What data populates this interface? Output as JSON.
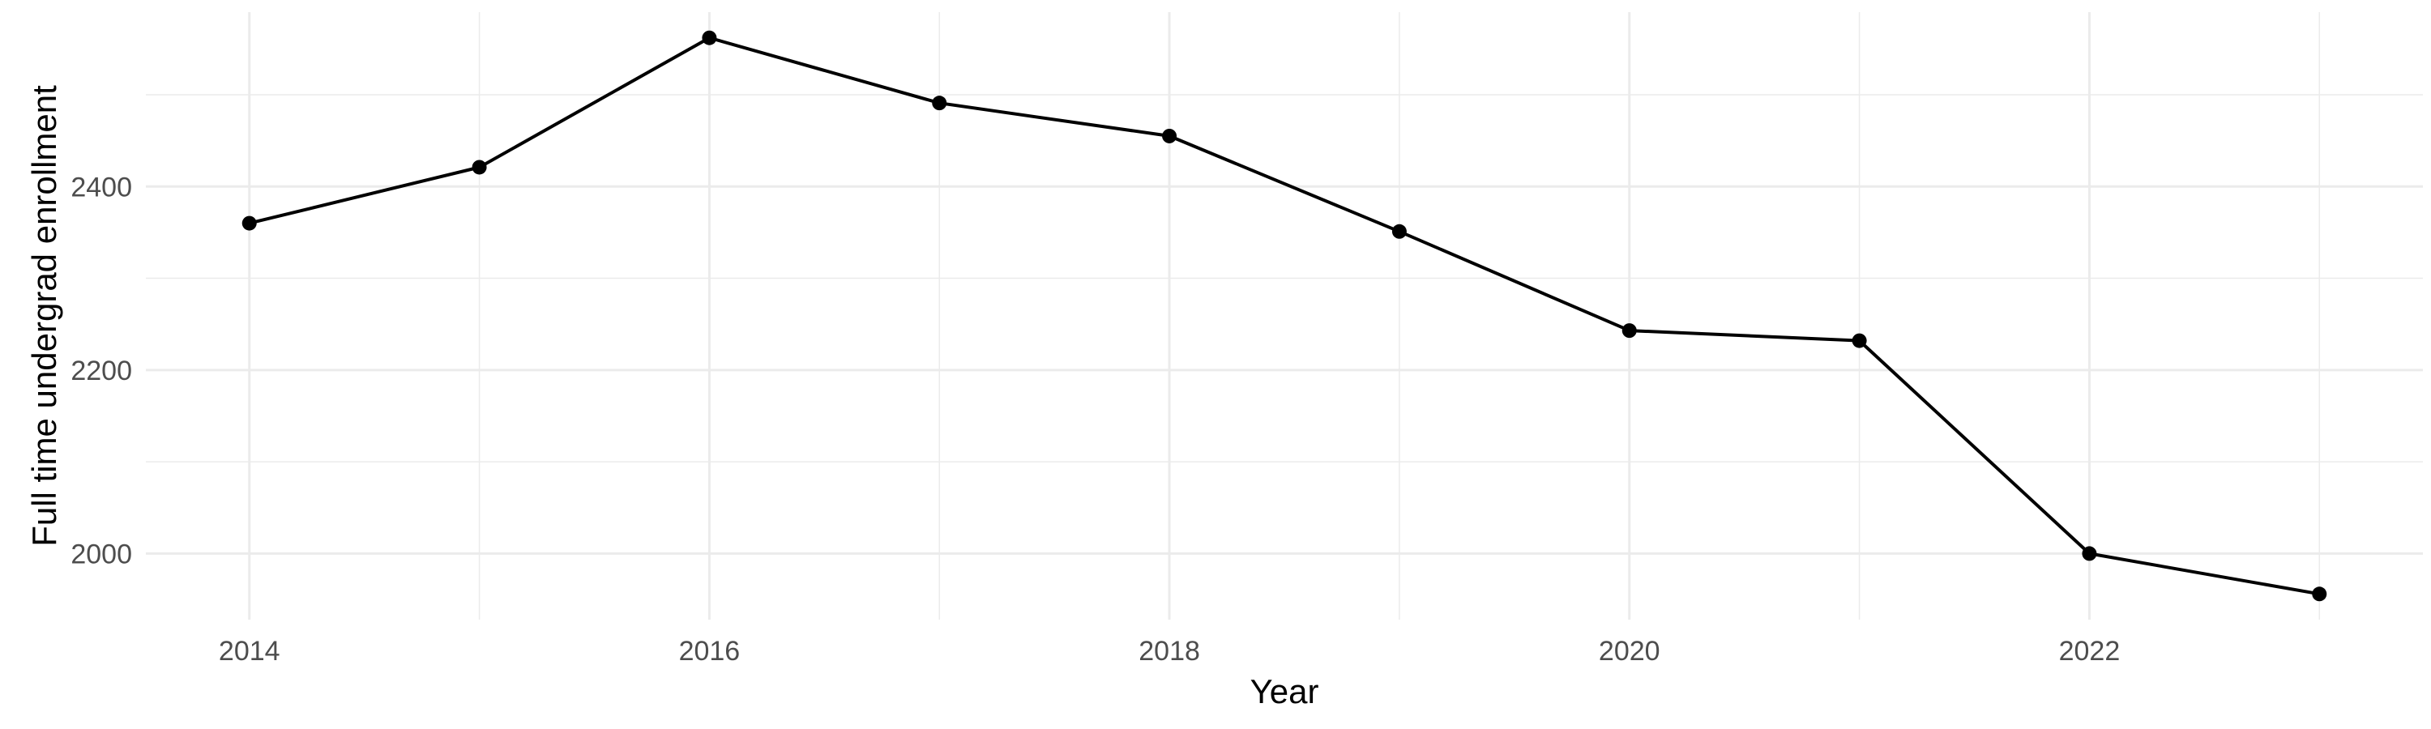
{
  "chart_data": {
    "type": "line",
    "title": "",
    "xlabel": "Year",
    "ylabel": "Full time undergrad enrollment",
    "x": [
      2014,
      2015,
      2016,
      2017,
      2018,
      2019,
      2020,
      2021,
      2022,
      2023
    ],
    "series": [
      {
        "values": [
          2360,
          2421,
          2562,
          2491,
          2455,
          2351,
          2243,
          2232,
          2000,
          1956
        ],
        "color": "#000000"
      }
    ],
    "xlim": [
      2013.55,
      2023.45
    ],
    "ylim": [
      1928,
      2590
    ],
    "x_ticks": [
      2014,
      2016,
      2018,
      2020,
      2022
    ],
    "x_tick_labels": [
      "2014",
      "2016",
      "2018",
      "2020",
      "2022"
    ],
    "y_ticks": [
      2000,
      2200,
      2400
    ],
    "y_tick_labels": [
      "2000",
      "2200",
      "2400"
    ],
    "grid": true,
    "legend": "none",
    "markers": true
  }
}
